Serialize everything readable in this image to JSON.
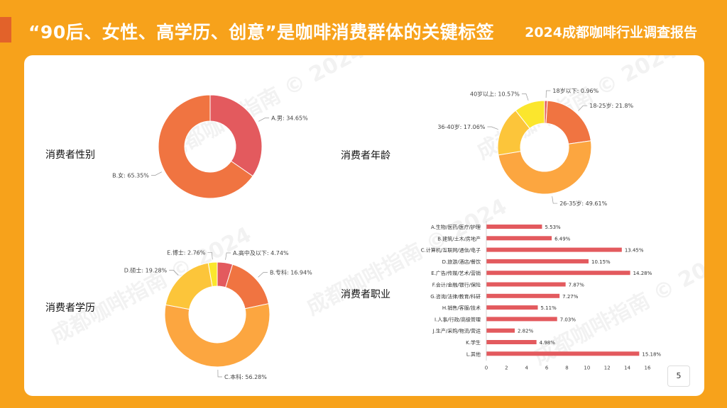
{
  "header": {
    "title": "“90后、女性、高学历、创意”是咖啡消费群体的关键标签",
    "report_name": "2024成都咖啡行业调查报告"
  },
  "watermark_text": "成都咖啡指南 © 2024",
  "page_number": "5",
  "sections": {
    "gender": "消费者性别",
    "age": "消费者年龄",
    "education": "消费者学历",
    "occupation": "消费者职业"
  },
  "colors": {
    "background": "#f7a21b",
    "card": "#ffffff",
    "bar": "#e35a5e"
  },
  "chart_data": [
    {
      "type": "pie",
      "chart": "gender",
      "labels": [
        "A.男",
        "B.女"
      ],
      "values": [
        34.65,
        65.35
      ],
      "display": [
        "A.男: 34.65%",
        "B.女: 65.35%"
      ],
      "colors": [
        "#e35a5e",
        "#f07441"
      ]
    },
    {
      "type": "pie",
      "chart": "age",
      "labels": [
        "18岁以下",
        "18-25岁",
        "26-35岁",
        "36-40岁",
        "40岁以上"
      ],
      "values": [
        0.96,
        21.8,
        49.61,
        17.06,
        10.57
      ],
      "display": [
        "18岁以下: 0.96%",
        "18-25岁: 21.8%",
        "26-35岁: 49.61%",
        "36-40岁: 17.06%",
        "40岁以上: 10.57%"
      ],
      "colors": [
        "#e35a5e",
        "#f07441",
        "#fca640",
        "#fcc53a",
        "#fbe62d"
      ]
    },
    {
      "type": "pie",
      "chart": "education",
      "labels": [
        "A.高中及以下",
        "B.专科",
        "C.本科",
        "D.硕士",
        "E.博士"
      ],
      "values": [
        4.74,
        16.94,
        56.28,
        19.28,
        2.76
      ],
      "display": [
        "A.高中及以下: 4.74%",
        "B.专科: 16.94%",
        "C.本科: 56.28%",
        "D.硕士: 19.28%",
        "E.博士: 2.76%"
      ],
      "colors": [
        "#e35a5e",
        "#f07441",
        "#fca640",
        "#fcc53a",
        "#fbe62d"
      ]
    },
    {
      "type": "bar",
      "chart": "occupation",
      "orientation": "horizontal",
      "categories": [
        "A.生物/医药/医疗/护理",
        "B.建筑/土木/房地产",
        "C.计算机/互联网/通信/电子",
        "D.旅游/酒店/餐饮",
        "E.广告/传媒/艺术/营销",
        "F.会计/金融/银行/保险",
        "G.咨询/法律/教育/科研",
        "H.销售/客服/技术",
        "I.人事/行政/高级管理",
        "J.生产/采购/物流/营运",
        "K.学生",
        "L.其他"
      ],
      "values": [
        5.53,
        6.49,
        13.45,
        10.15,
        14.28,
        7.87,
        7.27,
        5.11,
        7.03,
        2.82,
        4.98,
        15.18
      ],
      "value_labels": [
        "5.53%",
        "6.49%",
        "13.45%",
        "10.15%",
        "14.28%",
        "7.87%",
        "7.27%",
        "5.11%",
        "7.03%",
        "2.82%",
        "4.98%",
        "15.18%"
      ],
      "xlim": [
        0,
        16
      ],
      "xticks": [
        0,
        2,
        4,
        6,
        8,
        10,
        12,
        14,
        16
      ]
    }
  ]
}
